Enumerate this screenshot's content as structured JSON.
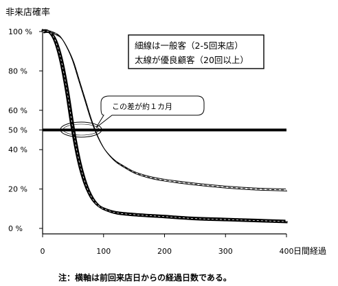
{
  "chart_data": {
    "type": "line",
    "title": "",
    "ylabel": "非来店確率",
    "xlabel": "日間経過",
    "xlim": [
      0,
      400
    ],
    "ylim": [
      0,
      100
    ],
    "x_ticks": [
      "0",
      "100",
      "200",
      "300",
      "400"
    ],
    "y_ticks": [
      "0 %",
      "20 %",
      "40 %",
      "50 %",
      "60 %",
      "80 %",
      "100 %"
    ],
    "legend_lines": [
      "細線は一般客（2-5回来店）",
      "太線が優良顧客（20回以上）"
    ],
    "legend_placement": "top-right",
    "annotation": "この差が約１カ月",
    "note": "注：横軸は前回来店日からの経過日数である。",
    "reference_line": {
      "y": 50
    },
    "series": [
      {
        "name": "細線は一般客（2-5回来店）",
        "stroke": "thin",
        "x": [
          0,
          10,
          20,
          30,
          40,
          50,
          60,
          70,
          80,
          90,
          100,
          110,
          120,
          130,
          150,
          175,
          200,
          250,
          300,
          350,
          400
        ],
        "y": [
          100,
          100,
          99,
          97,
          92,
          85,
          75,
          65,
          55,
          47,
          41,
          37,
          34,
          32,
          28.5,
          26,
          24.5,
          22.5,
          21,
          20,
          19.5
        ]
      },
      {
        "name": "太線が優良顧客（20回以上）",
        "stroke": "thick",
        "x": [
          0,
          10,
          20,
          30,
          40,
          50,
          60,
          70,
          80,
          90,
          100,
          120,
          150,
          200,
          250,
          300,
          350,
          400
        ],
        "y": [
          100,
          100,
          96,
          86,
          70,
          50,
          34,
          23,
          16,
          12,
          10,
          8,
          7,
          6,
          5,
          4.5,
          4,
          3.5
        ]
      }
    ]
  }
}
